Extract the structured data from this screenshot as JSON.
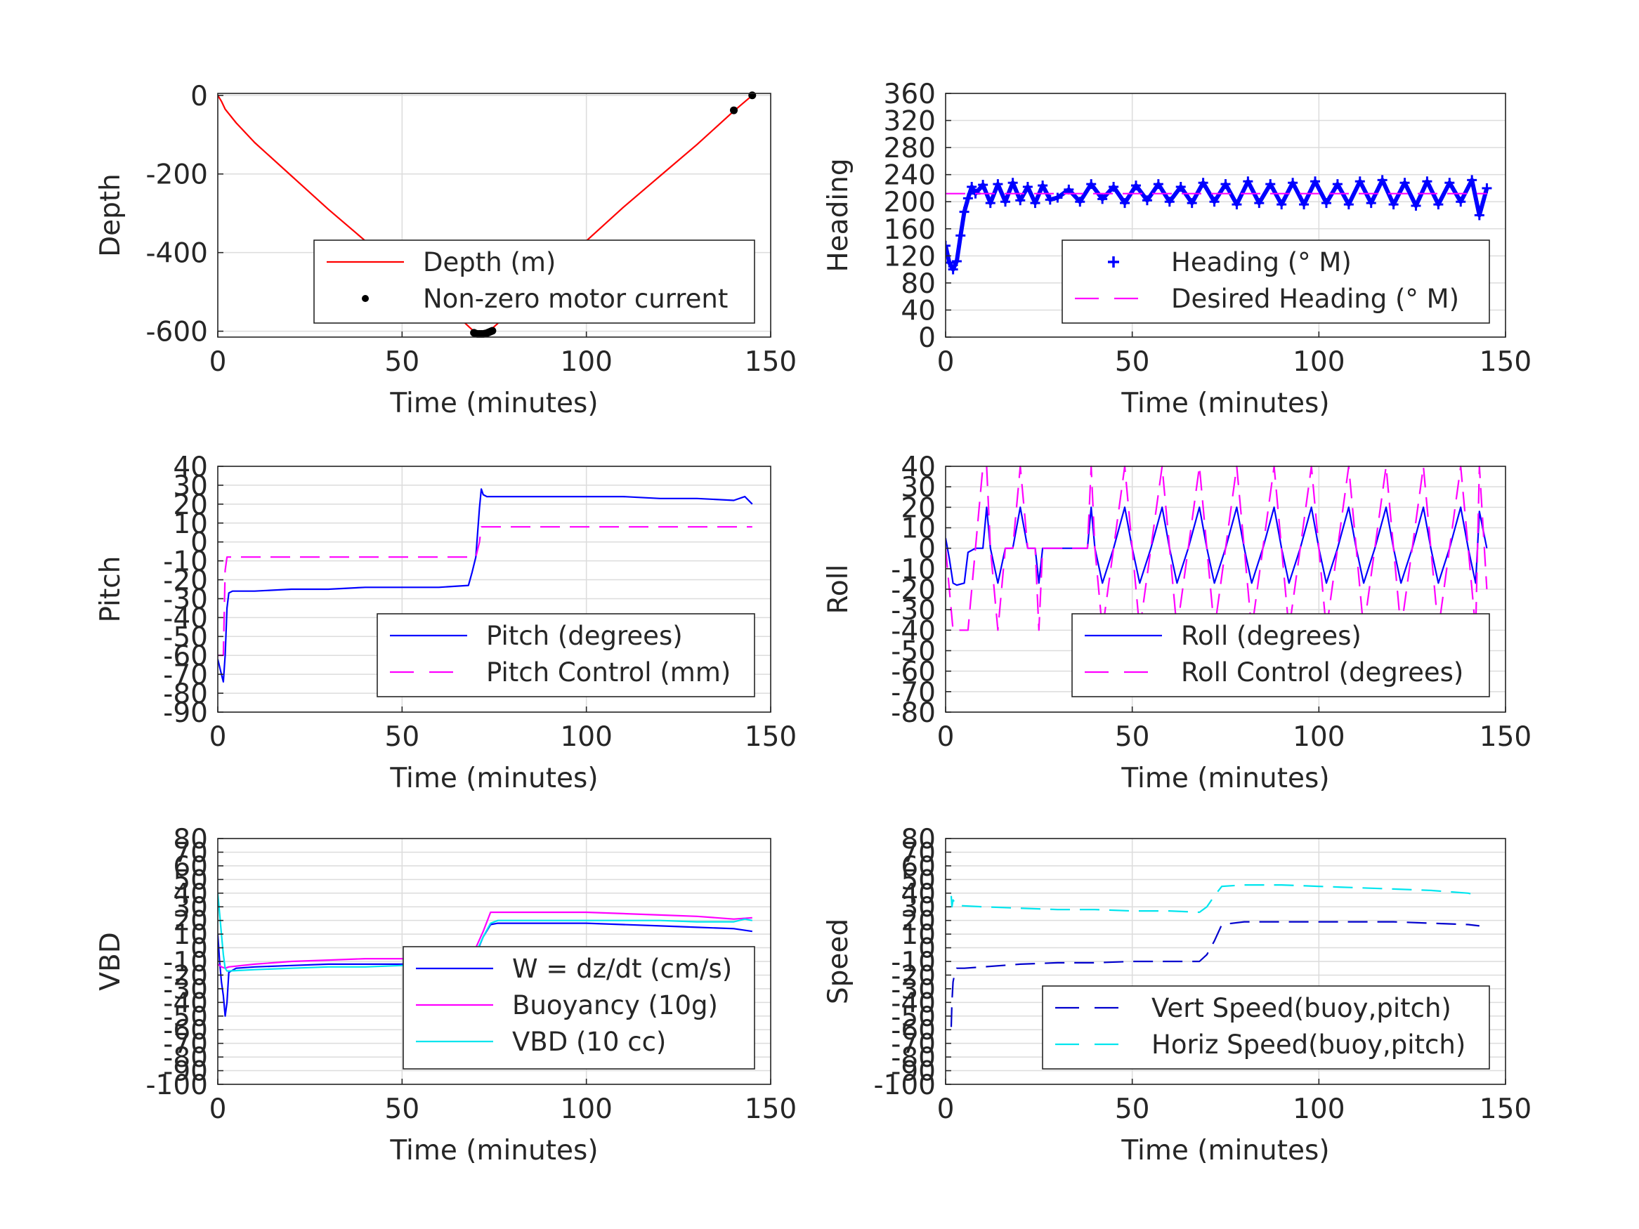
{
  "chart_data": [
    {
      "type": "line",
      "xlabel": "Time (minutes)",
      "ylabel": "Depth",
      "xlim": [
        0,
        150
      ],
      "ylim": [
        -615,
        5
      ],
      "xticks": [
        0,
        50,
        100,
        150
      ],
      "yticks": [
        0,
        -200,
        -400,
        -600
      ],
      "legend_position": "bottom-right",
      "series": [
        {
          "name": "Depth (m)",
          "style": "solid",
          "color": "#ff0000",
          "x": [
            0,
            1,
            2,
            5,
            10,
            20,
            30,
            40,
            50,
            60,
            66,
            70,
            73,
            76,
            80,
            90,
            100,
            110,
            120,
            130,
            140,
            145
          ],
          "y": [
            0,
            -15,
            -35,
            -70,
            -120,
            -205,
            -290,
            -370,
            -450,
            -530,
            -570,
            -605,
            -605,
            -580,
            -540,
            -455,
            -370,
            -285,
            -205,
            -125,
            -40,
            0
          ]
        },
        {
          "name": "Non-zero motor current",
          "style": "marker-dot",
          "color": "#000000",
          "x": [
            69.5,
            70,
            70.5,
            71,
            71.5,
            72,
            72.5,
            73,
            73.5,
            74,
            74.5,
            140,
            145
          ],
          "y": [
            -604,
            -606,
            -607,
            -607,
            -607,
            -607,
            -606,
            -605,
            -603,
            -601,
            -599,
            -38,
            0
          ]
        }
      ]
    },
    {
      "type": "line",
      "xlabel": "Time (minutes)",
      "ylabel": "Heading",
      "xlim": [
        0,
        150
      ],
      "ylim": [
        0,
        360
      ],
      "xticks": [
        0,
        50,
        100,
        150
      ],
      "yticks": [
        0,
        40,
        80,
        120,
        160,
        200,
        240,
        280,
        320,
        360
      ],
      "legend_position": "bottom-right",
      "series": [
        {
          "name": "Heading (° M)",
          "style": "marker-plus",
          "color": "#0000ff",
          "x": [
            0,
            1,
            2,
            3,
            4,
            5,
            6,
            7,
            8,
            10,
            12,
            14,
            16,
            18,
            20,
            22,
            24,
            26,
            28,
            30,
            33,
            36,
            39,
            42,
            45,
            48,
            51,
            54,
            57,
            60,
            63,
            66,
            69,
            72,
            75,
            78,
            81,
            84,
            87,
            90,
            93,
            96,
            99,
            102,
            105,
            108,
            111,
            114,
            117,
            120,
            123,
            126,
            129,
            132,
            135,
            138,
            141,
            143,
            145
          ],
          "y": [
            135,
            110,
            100,
            112,
            150,
            185,
            205,
            222,
            212,
            225,
            198,
            226,
            200,
            228,
            202,
            222,
            198,
            224,
            203,
            206,
            218,
            200,
            226,
            204,
            222,
            198,
            224,
            202,
            226,
            200,
            222,
            198,
            228,
            200,
            226,
            196,
            230,
            198,
            226,
            196,
            228,
            196,
            230,
            198,
            226,
            196,
            230,
            198,
            232,
            196,
            228,
            194,
            230,
            196,
            228,
            200,
            232,
            180,
            220
          ]
        },
        {
          "name": "Desired Heading (° M)",
          "style": "dashed",
          "color": "#ff00ff",
          "x": [
            0,
            145
          ],
          "y": [
            212,
            212
          ]
        }
      ]
    },
    {
      "type": "line",
      "xlabel": "Time (minutes)",
      "ylabel": "Pitch",
      "xlim": [
        0,
        150
      ],
      "ylim": [
        -90,
        40
      ],
      "xticks": [
        0,
        50,
        100,
        150
      ],
      "yticks": [
        40,
        30,
        20,
        10,
        0,
        -10,
        -20,
        -30,
        -40,
        -50,
        -60,
        -70,
        -80,
        -90
      ],
      "legend_position": "bottom-right",
      "series": [
        {
          "name": "Pitch (degrees)",
          "style": "solid",
          "color": "#0000ff",
          "x": [
            0,
            1,
            1.5,
            2,
            2.5,
            3,
            4,
            10,
            20,
            30,
            40,
            50,
            60,
            68,
            69,
            70,
            71,
            71.5,
            72,
            73,
            75,
            80,
            90,
            100,
            110,
            120,
            130,
            140,
            143,
            145
          ],
          "y": [
            -62,
            -70,
            -74,
            -60,
            -35,
            -27,
            -26,
            -26,
            -25,
            -25,
            -24,
            -24,
            -24,
            -23,
            -16,
            -8,
            18,
            28,
            25,
            24,
            24,
            24,
            24,
            24,
            24,
            23,
            23,
            22,
            24,
            20
          ]
        },
        {
          "name": "Pitch Control (mm)",
          "style": "dashed",
          "color": "#ff00ff",
          "x": [
            0,
            1.5,
            2,
            2.5,
            69,
            70,
            71,
            71.5,
            145
          ],
          "y": [
            -60,
            -60,
            -15,
            -8,
            -8,
            -8,
            0,
            8,
            8
          ]
        }
      ]
    },
    {
      "type": "line",
      "xlabel": "Time (minutes)",
      "ylabel": "Roll",
      "xlim": [
        0,
        150
      ],
      "ylim": [
        -80,
        40
      ],
      "xticks": [
        0,
        50,
        100,
        150
      ],
      "yticks": [
        40,
        30,
        20,
        10,
        0,
        -10,
        -20,
        -30,
        -40,
        -50,
        -60,
        -70,
        -80
      ],
      "legend_position": "bottom-right",
      "series": [
        {
          "name": "Roll (degrees)",
          "style": "solid",
          "color": "#0000ff",
          "x": [
            0,
            1,
            2,
            3,
            5,
            6,
            8,
            10,
            11,
            12,
            14,
            16,
            18,
            20,
            22,
            24,
            25,
            26,
            30,
            35,
            38,
            39,
            40,
            42,
            45,
            48,
            50,
            52,
            55,
            58,
            60,
            62,
            65,
            68,
            70,
            72,
            75,
            78,
            80,
            82,
            85,
            88,
            90,
            92,
            95,
            98,
            100,
            102,
            105,
            108,
            110,
            112,
            115,
            118,
            120,
            122,
            125,
            128,
            130,
            132,
            135,
            138,
            140,
            142,
            143,
            145
          ],
          "y": [
            5,
            -5,
            -17,
            -18,
            -17,
            -2,
            0,
            0,
            20,
            0,
            -17,
            0,
            0,
            20,
            0,
            0,
            -17,
            0,
            0,
            0,
            0,
            20,
            0,
            -17,
            0,
            20,
            0,
            -17,
            0,
            20,
            0,
            -17,
            0,
            20,
            0,
            -17,
            0,
            20,
            0,
            -17,
            0,
            20,
            0,
            -17,
            0,
            20,
            0,
            -17,
            0,
            20,
            0,
            -17,
            0,
            20,
            0,
            -17,
            0,
            20,
            0,
            -17,
            0,
            20,
            0,
            -17,
            18,
            0
          ]
        },
        {
          "name": "Roll Control (degrees)",
          "style": "dashed",
          "color": "#ff00ff",
          "x": [
            0,
            2,
            3,
            6,
            8,
            10,
            11,
            12,
            14,
            16,
            18,
            20,
            22,
            24,
            25,
            26,
            38,
            39,
            40,
            42,
            45,
            48,
            50,
            52,
            55,
            58,
            60,
            62,
            65,
            68,
            70,
            72,
            75,
            78,
            80,
            82,
            85,
            88,
            90,
            92,
            95,
            98,
            100,
            102,
            105,
            108,
            110,
            112,
            115,
            118,
            120,
            122,
            125,
            128,
            130,
            132,
            135,
            138,
            140,
            142,
            143,
            145
          ],
          "y": [
            0,
            -40,
            -40,
            -40,
            0,
            40,
            40,
            0,
            -40,
            0,
            0,
            40,
            0,
            0,
            -40,
            0,
            0,
            40,
            0,
            -40,
            0,
            40,
            0,
            -40,
            0,
            40,
            0,
            -40,
            0,
            40,
            0,
            -40,
            0,
            40,
            0,
            -40,
            0,
            40,
            0,
            -40,
            0,
            40,
            0,
            -40,
            0,
            40,
            0,
            -40,
            0,
            40,
            0,
            -40,
            0,
            40,
            0,
            -40,
            0,
            40,
            0,
            -40,
            40,
            -20
          ]
        }
      ]
    },
    {
      "type": "line",
      "xlabel": "Time (minutes)",
      "ylabel": "VBD",
      "xlim": [
        0,
        150
      ],
      "ylim": [
        -100,
        80
      ],
      "xticks": [
        0,
        50,
        100,
        150
      ],
      "yticks": [
        80,
        70,
        60,
        50,
        40,
        30,
        20,
        10,
        0,
        -10,
        -20,
        -30,
        -40,
        -50,
        -60,
        -70,
        -80,
        -90,
        -100
      ],
      "legend_position": "bottom-right",
      "series": [
        {
          "name": "W = dz/dt (cm/s)",
          "style": "solid",
          "color": "#0000ff",
          "x": [
            0,
            0.5,
            1,
            1.5,
            2,
            2.5,
            3,
            5,
            10,
            20,
            30,
            40,
            50,
            60,
            68,
            70,
            72,
            74,
            76,
            80,
            90,
            100,
            110,
            120,
            130,
            140,
            145
          ],
          "y": [
            10,
            -10,
            -25,
            -35,
            -50,
            -40,
            -18,
            -15,
            -14,
            -13,
            -12,
            -12,
            -12,
            -12,
            -12,
            -5,
            8,
            17,
            18,
            18,
            18,
            18,
            17,
            16,
            15,
            14,
            12
          ]
        },
        {
          "name": "Buoyancy (10g)",
          "style": "solid",
          "color": "#ff00ff",
          "x": [
            0,
            1,
            2,
            3,
            10,
            20,
            30,
            40,
            50,
            60,
            68,
            70,
            72,
            74,
            80,
            90,
            100,
            110,
            120,
            130,
            140,
            145
          ],
          "y": [
            -12,
            -14,
            -15,
            -14,
            -12,
            -10,
            -9,
            -8,
            -8,
            -7,
            -7,
            0,
            12,
            26,
            26,
            26,
            26,
            25,
            24,
            23,
            21,
            22
          ]
        },
        {
          "name": "VBD (10 cc)",
          "style": "solid",
          "color": "#00e5ee",
          "x": [
            0,
            0.5,
            1,
            1.5,
            2,
            2.5,
            3,
            10,
            20,
            30,
            40,
            50,
            60,
            68,
            70,
            72,
            74,
            76,
            80,
            90,
            100,
            110,
            120,
            130,
            140,
            143,
            145
          ],
          "y": [
            40,
            25,
            10,
            -5,
            -15,
            -17,
            -17,
            -16,
            -15,
            -14,
            -14,
            -13,
            -13,
            -13,
            -4,
            8,
            18,
            20,
            20,
            20,
            20,
            20,
            20,
            19,
            19,
            21,
            20
          ]
        }
      ]
    },
    {
      "type": "line",
      "xlabel": "Time (minutes)",
      "ylabel": "Speed",
      "xlim": [
        0,
        150
      ],
      "ylim": [
        -100,
        80
      ],
      "xticks": [
        0,
        50,
        100,
        150
      ],
      "yticks": [
        80,
        70,
        60,
        50,
        40,
        30,
        20,
        10,
        0,
        -10,
        -20,
        -30,
        -40,
        -50,
        -60,
        -70,
        -80,
        -90,
        -100
      ],
      "legend_position": "bottom-right",
      "series": [
        {
          "name": "Vert Speed(buoy,pitch)",
          "style": "dashed",
          "color": "#0000cd",
          "x": [
            1.5,
            1.7,
            2,
            2.5,
            3,
            5,
            10,
            20,
            30,
            40,
            50,
            60,
            68,
            70,
            72,
            74,
            80,
            90,
            100,
            110,
            120,
            130,
            140,
            143
          ],
          "y": [
            -58,
            -40,
            -25,
            -18,
            -15,
            -15,
            -14,
            -12,
            -11,
            -11,
            -10,
            -10,
            -10,
            -5,
            5,
            17,
            19,
            19,
            19,
            19,
            19,
            18,
            17,
            16
          ]
        },
        {
          "name": "Horiz Speed(buoy,pitch)",
          "style": "dashed",
          "color": "#00e5ee",
          "x": [
            1.5,
            1.7,
            2,
            2.5,
            3,
            10,
            20,
            30,
            40,
            50,
            60,
            68,
            70,
            72,
            74,
            80,
            90,
            100,
            110,
            120,
            130,
            140,
            143
          ],
          "y": [
            38,
            30,
            35,
            33,
            31,
            30,
            29,
            28,
            28,
            27,
            27,
            26,
            30,
            38,
            45,
            46,
            46,
            45,
            44,
            43,
            42,
            40,
            38
          ]
        }
      ]
    }
  ]
}
